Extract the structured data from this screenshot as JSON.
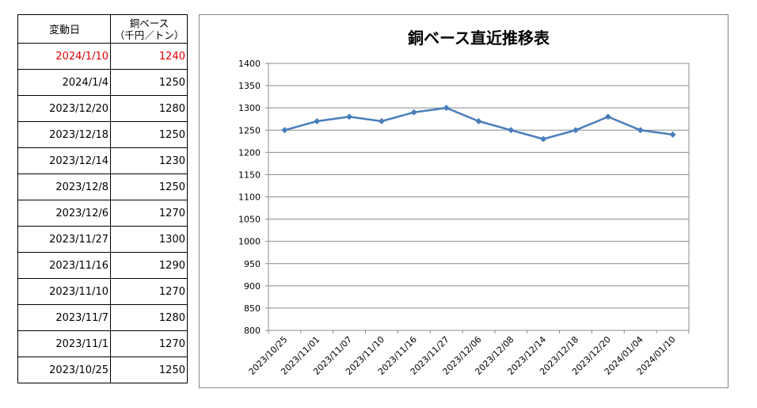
{
  "table": {
    "header": {
      "date": "変動日",
      "price_line1": "銅ベース",
      "price_line2": "（千円／トン）"
    },
    "rows": [
      {
        "date": "2024/1/10",
        "price": "1240",
        "highlight": true
      },
      {
        "date": "2024/1/4",
        "price": "1250"
      },
      {
        "date": "2023/12/20",
        "price": "1280"
      },
      {
        "date": "2023/12/18",
        "price": "1250"
      },
      {
        "date": "2023/12/14",
        "price": "1230"
      },
      {
        "date": "2023/12/8",
        "price": "1250"
      },
      {
        "date": "2023/12/6",
        "price": "1270"
      },
      {
        "date": "2023/11/27",
        "price": "1300"
      },
      {
        "date": "2023/11/16",
        "price": "1290"
      },
      {
        "date": "2023/11/10",
        "price": "1270"
      },
      {
        "date": "2023/11/7",
        "price": "1280"
      },
      {
        "date": "2023/11/1",
        "price": "1270"
      },
      {
        "date": "2023/10/25",
        "price": "1250"
      }
    ],
    "highlight_color": "#e00000"
  },
  "chart_data": {
    "type": "line",
    "title": "銅ベース直近推移表",
    "categories": [
      "2023/10/25",
      "2023/11/01",
      "2023/11/07",
      "2023/11/10",
      "2023/11/16",
      "2023/11/27",
      "2023/12/06",
      "2023/12/08",
      "2023/12/14",
      "2023/12/18",
      "2023/12/20",
      "2024/01/04",
      "2024/01/10"
    ],
    "values": [
      1250,
      1270,
      1280,
      1270,
      1290,
      1300,
      1270,
      1250,
      1230,
      1250,
      1280,
      1250,
      1240
    ],
    "ylim": [
      800,
      1400
    ],
    "yticks": [
      800,
      850,
      900,
      950,
      1000,
      1050,
      1100,
      1150,
      1200,
      1250,
      1300,
      1350,
      1400
    ],
    "grid": true,
    "legend": "none",
    "line_color": "#4a7ebb",
    "marker": "diamond"
  }
}
